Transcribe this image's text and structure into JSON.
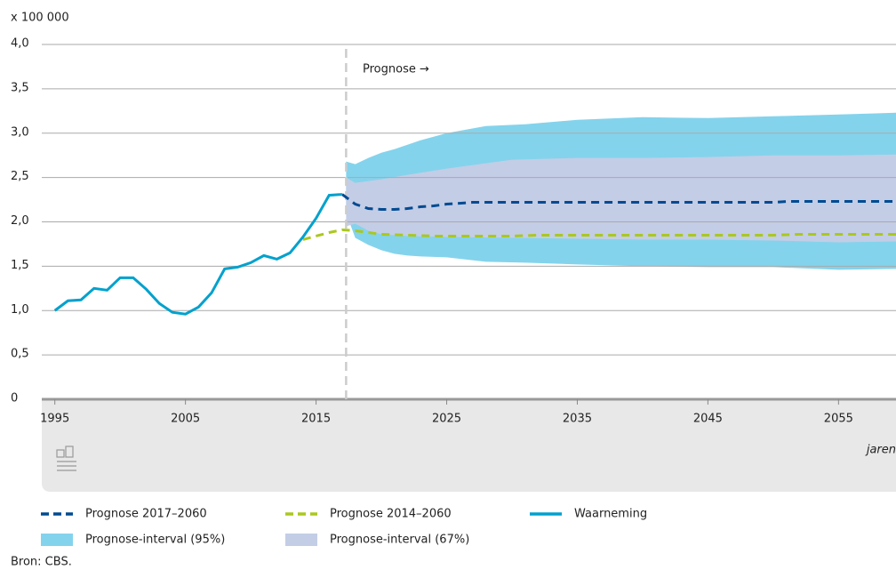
{
  "chart_data": {
    "type": "line",
    "y_unit_label": "x 100 000",
    "annotation": "Prognose →",
    "x_axis_label": "jaren",
    "source": "Bron: CBS.",
    "xlim": [
      1994,
      2059.4
    ],
    "xticks": [
      1995,
      2005,
      2015,
      2025,
      2035,
      2045,
      2055
    ],
    "ylim": [
      0,
      4
    ],
    "yticks": [
      0,
      {
        "value": 0.5,
        "label": "0,5"
      },
      {
        "value": 1,
        "label": "1,0"
      },
      {
        "value": 1.5,
        "label": "1,5"
      },
      {
        "value": 2,
        "label": "2,0"
      },
      {
        "value": 2.5,
        "label": "2,5"
      },
      {
        "value": 3,
        "label": "3,0"
      },
      {
        "value": 3.5,
        "label": "3,5"
      },
      {
        "value": 4,
        "label": "4,0"
      }
    ],
    "grid": true,
    "bands": [
      {
        "name": "Prognose-interval (95%)",
        "color": "#84d3ec",
        "x": [
          2017.3,
          2018,
          2019,
          2020,
          2021,
          2022,
          2023,
          2025,
          2028,
          2031,
          2035,
          2040,
          2045,
          2050,
          2055,
          2059.4
        ],
        "low": [
          2.1,
          1.82,
          1.74,
          1.68,
          1.64,
          1.62,
          1.61,
          1.6,
          1.55,
          1.54,
          1.52,
          1.5,
          1.49,
          1.49,
          1.46,
          1.47
        ],
        "high": [
          2.68,
          2.65,
          2.72,
          2.78,
          2.82,
          2.87,
          2.92,
          3.0,
          3.08,
          3.1,
          3.15,
          3.18,
          3.17,
          3.19,
          3.21,
          3.23
        ]
      },
      {
        "name": "Prognose-interval (67%)",
        "color": "#c3cde6",
        "x": [
          2017.3,
          2018,
          2019,
          2020,
          2022,
          2025,
          2030,
          2035,
          2040,
          2045,
          2050,
          2055,
          2059.4
        ],
        "low": [
          1.95,
          1.98,
          1.9,
          1.86,
          1.84,
          1.83,
          1.82,
          1.81,
          1.8,
          1.8,
          1.79,
          1.77,
          1.78
        ],
        "high": [
          2.5,
          2.44,
          2.46,
          2.48,
          2.53,
          2.6,
          2.7,
          2.72,
          2.72,
          2.73,
          2.75,
          2.75,
          2.76
        ]
      }
    ],
    "series": [
      {
        "name": "Prognose 2017–2060",
        "color": "#004a91",
        "dashed": true,
        "x": [
          2017,
          2018,
          2019,
          2020,
          2021,
          2022,
          2023,
          2024,
          2025,
          2027,
          2030,
          2040,
          2050,
          2051,
          2059.4
        ],
        "values": [
          2.31,
          2.2,
          2.15,
          2.14,
          2.14,
          2.15,
          2.17,
          2.18,
          2.2,
          2.22,
          2.22,
          2.22,
          2.22,
          2.23,
          2.23
        ]
      },
      {
        "name": "Prognose 2014–2060",
        "color": "#aac81e",
        "dashed": true,
        "x": [
          2014,
          2015,
          2016,
          2017,
          2018,
          2020,
          2022,
          2024,
          2030,
          2032,
          2050,
          2052,
          2059.4
        ],
        "values": [
          1.8,
          1.84,
          1.88,
          1.91,
          1.9,
          1.86,
          1.85,
          1.84,
          1.84,
          1.85,
          1.85,
          1.86,
          1.86
        ]
      },
      {
        "name": "Waarneming",
        "color": "#00a1cd",
        "dashed": false,
        "x": [
          1995,
          1996,
          1997,
          1998,
          1999,
          2000,
          2001,
          2002,
          2003,
          2004,
          2005,
          2006,
          2007,
          2008,
          2009,
          2010,
          2011,
          2012,
          2013,
          2014,
          2015,
          2016,
          2017
        ],
        "values": [
          1.0,
          1.11,
          1.12,
          1.25,
          1.23,
          1.37,
          1.37,
          1.24,
          1.08,
          0.98,
          0.96,
          1.04,
          1.2,
          1.47,
          1.49,
          1.54,
          1.62,
          1.58,
          1.65,
          1.83,
          2.04,
          2.3,
          2.31
        ]
      }
    ]
  }
}
